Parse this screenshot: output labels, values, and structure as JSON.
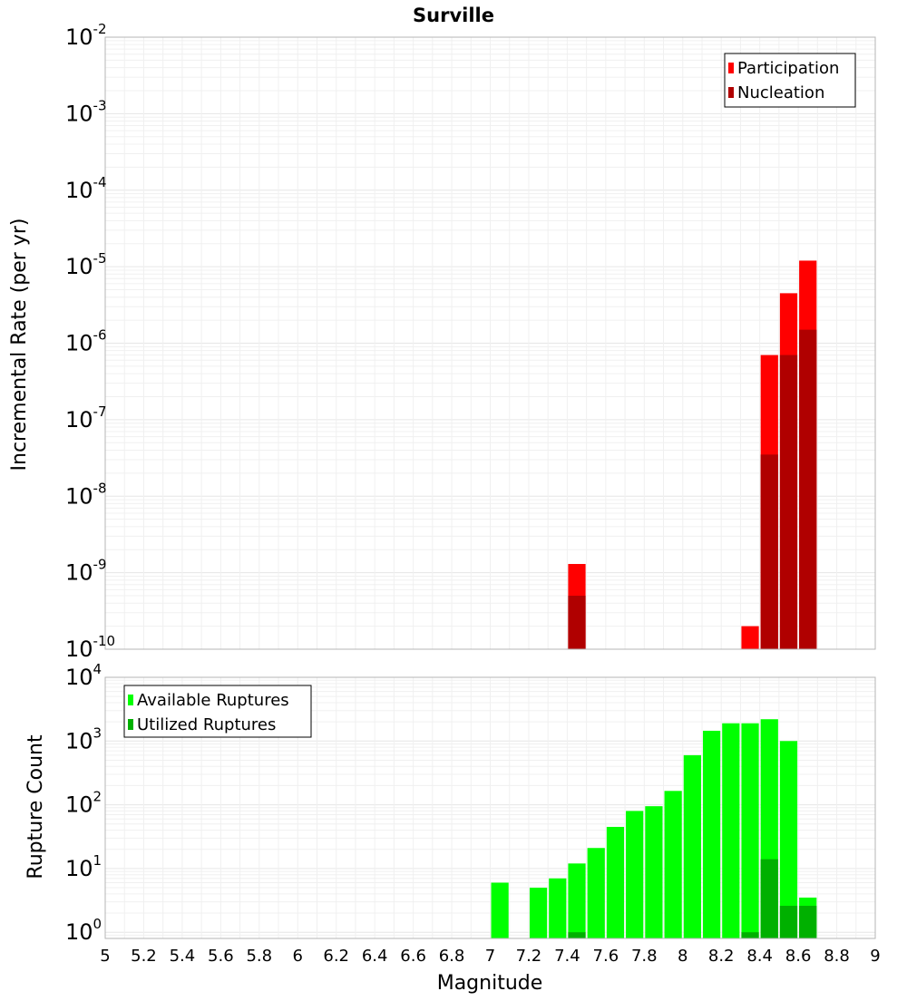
{
  "title": "Surville",
  "xlabel": "Magnitude",
  "colors": {
    "participation": "#ff0000",
    "nucleation": "#b00000",
    "available": "#00ff00",
    "utilized": "#00b000"
  },
  "chart_data": [
    {
      "type": "bar",
      "panel": "top",
      "ylabel": "Incremental Rate (per yr)",
      "yscale": "log",
      "ylim": [
        1e-10,
        0.01
      ],
      "xlim": [
        5,
        9
      ],
      "grid": true,
      "legend_position": "top-right",
      "series": [
        {
          "name": "Participation",
          "color_key": "participation",
          "points": [
            {
              "x": 7.45,
              "y": 1.3e-09
            },
            {
              "x": 8.35,
              "y": 2e-10
            },
            {
              "x": 8.45,
              "y": 7e-07
            },
            {
              "x": 8.55,
              "y": 4.5e-06
            },
            {
              "x": 8.65,
              "y": 1.2e-05
            }
          ]
        },
        {
          "name": "Nucleation",
          "color_key": "nucleation",
          "points": [
            {
              "x": 7.45,
              "y": 5e-10
            },
            {
              "x": 8.45,
              "y": 3.5e-08
            },
            {
              "x": 8.55,
              "y": 7e-07
            },
            {
              "x": 8.65,
              "y": 1.5e-06
            }
          ]
        }
      ]
    },
    {
      "type": "bar",
      "panel": "bottom",
      "ylabel": "Rupture Count",
      "yscale": "log",
      "ylim": [
        0.8,
        10000
      ],
      "xlim": [
        5,
        9
      ],
      "grid": true,
      "legend_position": "top-left",
      "series": [
        {
          "name": "Available Ruptures",
          "color_key": "available",
          "points": [
            {
              "x": 7.05,
              "y": 6
            },
            {
              "x": 7.25,
              "y": 5
            },
            {
              "x": 7.35,
              "y": 7
            },
            {
              "x": 7.45,
              "y": 12
            },
            {
              "x": 7.55,
              "y": 21
            },
            {
              "x": 7.65,
              "y": 45
            },
            {
              "x": 7.75,
              "y": 80
            },
            {
              "x": 7.85,
              "y": 95
            },
            {
              "x": 7.95,
              "y": 165
            },
            {
              "x": 8.05,
              "y": 600
            },
            {
              "x": 8.15,
              "y": 1450
            },
            {
              "x": 8.25,
              "y": 1900
            },
            {
              "x": 8.35,
              "y": 1900
            },
            {
              "x": 8.45,
              "y": 2200
            },
            {
              "x": 8.55,
              "y": 1000
            },
            {
              "x": 8.65,
              "y": 3.5
            }
          ]
        },
        {
          "name": "Utilized Ruptures",
          "color_key": "utilized",
          "points": [
            {
              "x": 7.45,
              "y": 1
            },
            {
              "x": 8.35,
              "y": 1
            },
            {
              "x": 8.45,
              "y": 14
            },
            {
              "x": 8.55,
              "y": 2.6
            },
            {
              "x": 8.65,
              "y": 2.6
            }
          ]
        }
      ]
    }
  ],
  "top_yticks": [
    {
      "value": 0.01,
      "base": "10",
      "exp": "-2"
    },
    {
      "value": 0.001,
      "base": "10",
      "exp": "-3"
    },
    {
      "value": 0.0001,
      "base": "10",
      "exp": "-4"
    },
    {
      "value": 1e-05,
      "base": "10",
      "exp": "-5"
    },
    {
      "value": 1e-06,
      "base": "10",
      "exp": "-6"
    },
    {
      "value": 1e-07,
      "base": "10",
      "exp": "-7"
    },
    {
      "value": 1e-08,
      "base": "10",
      "exp": "-8"
    },
    {
      "value": 1e-09,
      "base": "10",
      "exp": "-9"
    },
    {
      "value": 1e-10,
      "base": "10",
      "exp": "-10"
    }
  ],
  "bottom_yticks": [
    {
      "value": 10000,
      "base": "10",
      "exp": "4"
    },
    {
      "value": 1000,
      "base": "10",
      "exp": "3"
    },
    {
      "value": 100,
      "base": "10",
      "exp": "2"
    },
    {
      "value": 10,
      "base": "10",
      "exp": "1"
    },
    {
      "value": 1,
      "base": "10",
      "exp": "0"
    }
  ],
  "xticks": [
    "5",
    "5.2",
    "5.4",
    "5.6",
    "5.8",
    "6",
    "6.2",
    "6.4",
    "6.6",
    "6.8",
    "7",
    "7.2",
    "7.4",
    "7.6",
    "7.8",
    "8",
    "8.2",
    "8.4",
    "8.6",
    "8.8",
    "9"
  ]
}
